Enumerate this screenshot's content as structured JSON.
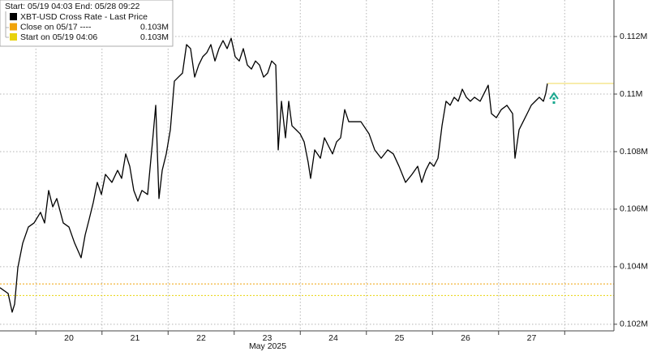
{
  "chart_data": {
    "type": "line",
    "legend_header": "Start: 05/19 04:03 End: 05/28 09:22",
    "x_label": "May 2025",
    "series": [
      {
        "name": "XBT-USD Cross Rate - Last Price",
        "color": "#000000",
        "x": [
          19.457,
          19.58,
          19.641,
          19.678,
          19.727,
          19.801,
          19.886,
          19.972,
          20.07,
          20.132,
          20.193,
          20.255,
          20.316,
          20.414,
          20.5,
          20.586,
          20.684,
          20.745,
          20.807,
          20.868,
          20.929,
          20.991,
          21.052,
          21.15,
          21.236,
          21.297,
          21.359,
          21.42,
          21.481,
          21.543,
          21.604,
          21.69,
          21.764,
          21.813,
          21.862,
          21.911,
          21.972,
          22.034,
          22.095,
          22.156,
          22.218,
          22.279,
          22.34,
          22.402,
          22.463,
          22.525,
          22.586,
          22.647,
          22.709,
          22.77,
          22.831,
          22.893,
          22.954,
          23.015,
          23.077,
          23.138,
          23.199,
          23.261,
          23.322,
          23.383,
          23.445,
          23.506,
          23.567,
          23.629,
          23.666,
          23.715,
          23.776,
          23.825,
          23.874,
          23.936,
          23.997,
          24.058,
          24.119,
          24.156,
          24.218,
          24.304,
          24.365,
          24.426,
          24.488,
          24.549,
          24.61,
          24.672,
          24.733,
          24.819,
          24.917,
          25.04,
          25.126,
          25.224,
          25.322,
          25.408,
          25.494,
          25.592,
          25.69,
          25.776,
          25.837,
          25.898,
          25.96,
          26.021,
          26.083,
          26.144,
          26.205,
          26.267,
          26.328,
          26.389,
          26.451,
          26.512,
          26.573,
          26.635,
          26.721,
          26.782,
          26.843,
          26.892,
          26.966,
          27.04,
          27.126,
          27.212,
          27.248,
          27.31,
          27.371,
          27.432,
          27.494,
          27.555,
          27.616,
          27.678,
          27.714,
          27.739
        ],
        "values": [
          0.10327,
          0.10307,
          0.10242,
          0.1027,
          0.10397,
          0.10482,
          0.10538,
          0.10552,
          0.10589,
          0.10552,
          0.10665,
          0.10608,
          0.10637,
          0.10552,
          0.10538,
          0.10482,
          0.10431,
          0.1051,
          0.10566,
          0.10623,
          0.10693,
          0.10651,
          0.10721,
          0.10693,
          0.10735,
          0.10707,
          0.10792,
          0.10749,
          0.10665,
          0.10628,
          0.10665,
          0.10651,
          0.10834,
          0.10961,
          0.10637,
          0.10735,
          0.10792,
          0.10876,
          0.11045,
          0.11059,
          0.11073,
          0.11172,
          0.11158,
          0.11059,
          0.11101,
          0.1113,
          0.11144,
          0.11172,
          0.11115,
          0.11158,
          0.11186,
          0.11158,
          0.11194,
          0.1113,
          0.11115,
          0.11158,
          0.11101,
          0.11087,
          0.11115,
          0.11101,
          0.11059,
          0.11073,
          0.11115,
          0.11101,
          0.10806,
          0.10975,
          0.10848,
          0.10975,
          0.1089,
          0.10876,
          0.10862,
          0.10834,
          0.10763,
          0.10707,
          0.10806,
          0.10777,
          0.10848,
          0.1082,
          0.10792,
          0.10834,
          0.10848,
          0.10946,
          0.10904,
          0.10904,
          0.10904,
          0.10862,
          0.10806,
          0.10777,
          0.10806,
          0.10792,
          0.10749,
          0.10693,
          0.10721,
          0.10749,
          0.10693,
          0.10735,
          0.10763,
          0.10749,
          0.10777,
          0.1089,
          0.10975,
          0.10961,
          0.10989,
          0.10975,
          0.11017,
          0.10989,
          0.10975,
          0.10989,
          0.10975,
          0.11003,
          0.11031,
          0.10932,
          0.10918,
          0.10946,
          0.10961,
          0.10932,
          0.10777,
          0.10876,
          0.10904,
          0.10932,
          0.10961,
          0.10975,
          0.10989,
          0.10975,
          0.11003,
          0.11037
        ]
      }
    ],
    "reference_lines": [
      {
        "name": "Close on 05/17 ----",
        "color": "#f0a30a",
        "value": 0.1034,
        "value_label": "0.103M"
      },
      {
        "name": "Start on 05/19 04:06",
        "color": "#e8d20c",
        "value": 0.103,
        "value_label": "0.103M"
      }
    ],
    "xlim": [
      19.457,
      28.745
    ],
    "ylim": [
      0.10177,
      0.11327
    ],
    "xticks": [
      {
        "value": 20.5,
        "label": "20"
      },
      {
        "value": 21.5,
        "label": "21"
      },
      {
        "value": 22.5,
        "label": "22"
      },
      {
        "value": 23.5,
        "label": "23"
      },
      {
        "value": 24.5,
        "label": "24"
      },
      {
        "value": 25.5,
        "label": "25"
      },
      {
        "value": 26.5,
        "label": "26"
      },
      {
        "value": 27.5,
        "label": "27"
      }
    ],
    "xgrid": [
      20,
      21,
      22,
      23,
      24,
      25,
      26,
      27,
      28
    ],
    "yticks": [
      {
        "value": 0.102,
        "label": "0.102M"
      },
      {
        "value": 0.104,
        "label": "0.104M"
      },
      {
        "value": 0.106,
        "label": "0.106M"
      },
      {
        "value": 0.108,
        "label": "0.108M"
      },
      {
        "value": 0.11,
        "label": "0.11M"
      },
      {
        "value": 0.112,
        "label": "0.112M"
      }
    ],
    "grid": true,
    "last_price_color": "#f3e27a"
  }
}
